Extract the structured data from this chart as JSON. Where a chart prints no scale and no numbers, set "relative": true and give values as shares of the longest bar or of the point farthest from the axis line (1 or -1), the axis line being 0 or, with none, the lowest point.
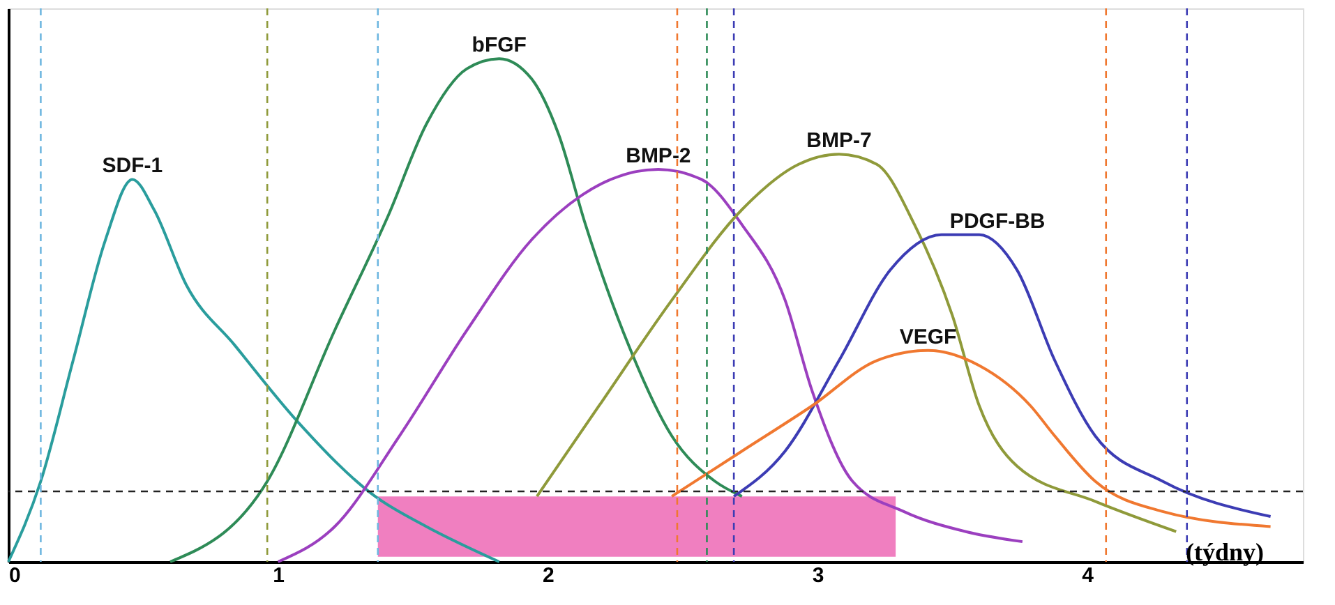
{
  "chart_data": {
    "type": "line",
    "relative": true,
    "xlabel": "(týdny)",
    "xlim": [
      0,
      4.8
    ],
    "xticks": [
      0,
      1,
      2,
      3,
      4
    ],
    "tick_labels": "x",
    "grid": false,
    "line_style": "solid",
    "marker": "none",
    "series": [
      {
        "name": "SDF-1",
        "color": "#2a9d9d",
        "x": [
          0,
          0.12,
          0.24,
          0.36,
          0.46,
          0.54,
          0.66,
          0.84,
          1.07,
          1.36,
          1.55,
          1.82
        ],
        "values": [
          0,
          0.16,
          0.4,
          0.64,
          0.76,
          0.7,
          0.55,
          0.43,
          0.28,
          0.13,
          0.07,
          0
        ]
      },
      {
        "name": "bFGF",
        "color": "#2e8b57",
        "x": [
          0.6,
          0.96,
          1.21,
          1.41,
          1.55,
          1.7,
          1.82,
          1.94,
          2.04,
          2.14,
          2.3,
          2.46,
          2.62,
          2.72
        ],
        "values": [
          0,
          0.16,
          0.46,
          0.69,
          0.87,
          0.98,
          1.0,
          0.96,
          0.85,
          0.67,
          0.43,
          0.25,
          0.16,
          0.13
        ]
      },
      {
        "name": "BMP-2",
        "color": "#9b3fbf",
        "x": [
          1.0,
          1.21,
          1.45,
          1.7,
          1.94,
          2.13,
          2.41,
          2.57,
          2.72,
          2.88,
          2.98,
          3.13,
          3.32,
          3.55,
          3.76
        ],
        "values": [
          0,
          0.07,
          0.25,
          0.46,
          0.64,
          0.73,
          0.78,
          0.76,
          0.67,
          0.52,
          0.34,
          0.16,
          0.1,
          0.06,
          0.04
        ]
      },
      {
        "name": "BMP-7",
        "color": "#8f9a3a",
        "x": [
          1.96,
          2.19,
          2.46,
          2.72,
          2.93,
          3.08,
          3.22,
          3.36,
          3.5,
          3.6,
          3.74,
          4.03,
          4.33
        ],
        "values": [
          0.13,
          0.31,
          0.52,
          0.7,
          0.79,
          0.81,
          0.79,
          0.67,
          0.49,
          0.31,
          0.19,
          0.12,
          0.06
        ]
      },
      {
        "name": "PDGF-BB",
        "color": "#3c3cb4",
        "x": [
          2.69,
          2.88,
          3.08,
          3.27,
          3.46,
          3.6,
          3.74,
          3.88,
          4.03,
          4.28,
          4.68
        ],
        "values": [
          0.13,
          0.22,
          0.4,
          0.58,
          0.65,
          0.65,
          0.58,
          0.4,
          0.25,
          0.16,
          0.09
        ]
      },
      {
        "name": "VEGF",
        "color": "#f07830",
        "x": [
          2.46,
          2.72,
          2.98,
          3.22,
          3.41,
          3.6,
          3.79,
          3.88,
          4.03,
          4.28,
          4.68
        ],
        "values": [
          0.13,
          0.22,
          0.31,
          0.4,
          0.42,
          0.39,
          0.31,
          0.25,
          0.16,
          0.1,
          0.07
        ]
      }
    ],
    "ref_lines": [
      {
        "axis": "y",
        "value": 0.14,
        "color": "#222222",
        "line_style": "dashed"
      },
      {
        "axis": "x",
        "value": 0.12,
        "color": "#6fb7e0",
        "line_style": "dashed"
      },
      {
        "axis": "x",
        "value": 0.96,
        "color": "#8f9a3a",
        "line_style": "dashed"
      },
      {
        "axis": "x",
        "value": 1.37,
        "color": "#6fb7e0",
        "line_style": "dashed"
      },
      {
        "axis": "x",
        "value": 2.48,
        "color": "#f07830",
        "line_style": "dashed"
      },
      {
        "axis": "x",
        "value": 2.59,
        "color": "#2e8b57",
        "line_style": "dashed"
      },
      {
        "axis": "x",
        "value": 2.69,
        "color": "#3c3cb4",
        "line_style": "dashed"
      },
      {
        "axis": "x",
        "value": 4.07,
        "color": "#f07830",
        "line_style": "dashed"
      },
      {
        "axis": "x",
        "value": 4.37,
        "color": "#3c3cb4",
        "line_style": "dashed"
      }
    ],
    "bands": [
      {
        "axis": "x",
        "from": 1.37,
        "to": 3.29,
        "color": "#f07fc0"
      }
    ]
  }
}
